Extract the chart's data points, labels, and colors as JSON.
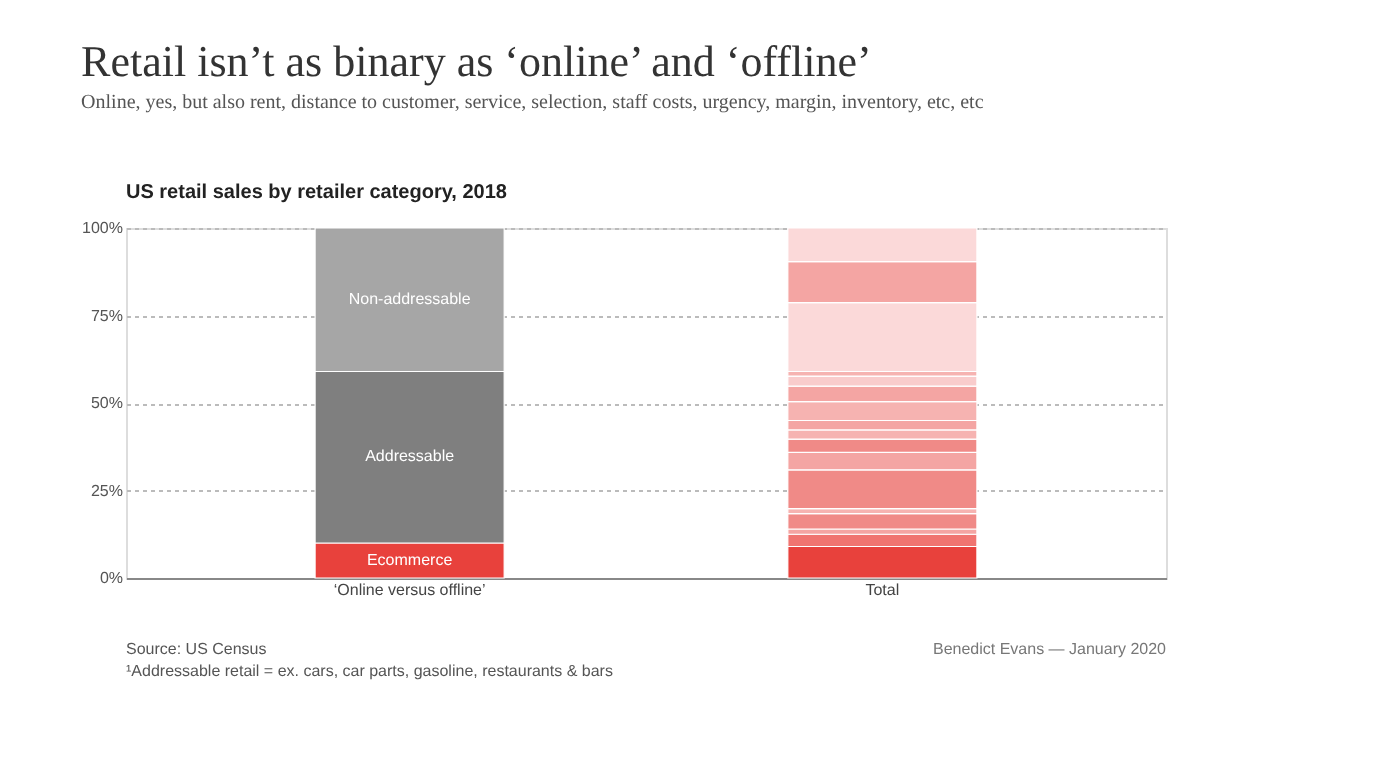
{
  "chart_data": {
    "type": "bar",
    "stacked": true,
    "title": "Retail isn’t as binary as ‘online’ and ‘offline’",
    "subtitle": "Online, yes, but also rent, distance to customer, service, selection, staff costs, urgency, margin, inventory, etc, etc",
    "categories": [
      "‘Online versus offline’",
      "Total"
    ],
    "series": [
      {
        "name": "Ecommerce",
        "color": "#e8413c",
        "values": [
          10,
          null
        ]
      },
      {
        "name": "Addressable",
        "color": "#7f7f7f",
        "values": [
          49,
          null
        ]
      },
      {
        "name": "Non-addressable",
        "color": "#a6a6a6",
        "values": [
          41,
          null
        ]
      },
      {
        "color": "#e8413c",
        "values": [
          null,
          9
        ]
      },
      {
        "color": "#f07470",
        "values": [
          null,
          3.5
        ]
      },
      {
        "color": "#f4a5a3",
        "values": [
          null,
          1.5
        ]
      },
      {
        "color": "#f08a87",
        "values": [
          null,
          4.4
        ]
      },
      {
        "color": "#f6b3b1",
        "values": [
          null,
          1.4
        ]
      },
      {
        "color": "#f08a87",
        "values": [
          null,
          11.1
        ]
      },
      {
        "color": "#f4a5a3",
        "values": [
          null,
          5
        ]
      },
      {
        "color": "#f08a87",
        "values": [
          null,
          3.8
        ]
      },
      {
        "color": "#f6b3b1",
        "values": [
          null,
          2.6
        ]
      },
      {
        "color": "#f4a5a3",
        "values": [
          null,
          2.7
        ]
      },
      {
        "color": "#f6b3b1",
        "values": [
          null,
          5.4
        ]
      },
      {
        "color": "#f4a5a3",
        "values": [
          null,
          4.4
        ]
      },
      {
        "color": "#f9cccc",
        "values": [
          null,
          2.9
        ]
      },
      {
        "color": "#f6b3b1",
        "values": [
          null,
          1.3
        ]
      },
      {
        "color": "#fbd9d9",
        "values": [
          null,
          19.7
        ]
      },
      {
        "color": "#f4a5a3",
        "values": [
          null,
          11.7
        ]
      },
      {
        "color": "#fbd9d9",
        "values": [
          null,
          9.6
        ]
      }
    ],
    "ylim": [
      0,
      100
    ],
    "yticks": [
      {
        "value": 0,
        "label": "0%"
      },
      {
        "value": 25,
        "label": "25%"
      },
      {
        "value": 50,
        "label": "50%"
      },
      {
        "value": 75,
        "label": "75%"
      },
      {
        "value": 100,
        "label": "100%"
      }
    ],
    "grid": "y",
    "legend": false,
    "annotations": [
      "US retail sales by retailer category, 2018",
      "Source: US Census",
      "¹Addressable retail = ex. cars, car parts, gasoline, restaurants & bars",
      "Benedict Evans — January 2020"
    ]
  }
}
